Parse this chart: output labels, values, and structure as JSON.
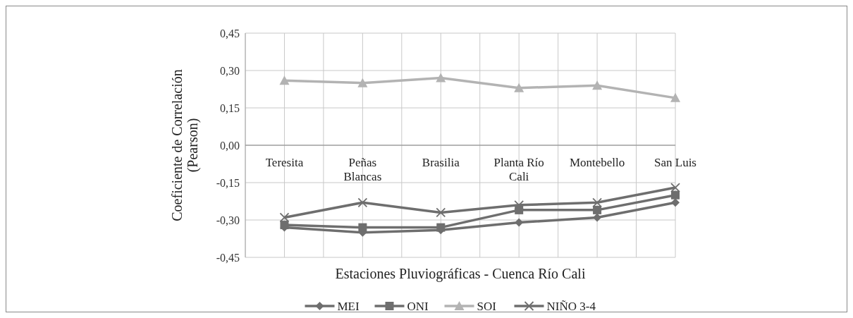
{
  "chart_data": {
    "type": "line",
    "xlabel": "Estaciones Pluviográficas - Cuenca Río Cali",
    "ylabel": "Coeficiente de Correlación\n(Pearson)",
    "categories": [
      "Teresita",
      "Peñas Blancas",
      "Brasilia",
      "Planta Río Cali",
      "Montebello",
      "San Luis"
    ],
    "series": [
      {
        "name": "MEI",
        "color": "#6e6e6e",
        "marker": "diamond",
        "values": [
          -0.33,
          -0.35,
          -0.34,
          -0.31,
          -0.29,
          -0.23
        ]
      },
      {
        "name": "ONI",
        "color": "#6e6e6e",
        "marker": "square",
        "values": [
          -0.32,
          -0.33,
          -0.33,
          -0.26,
          -0.26,
          -0.2
        ]
      },
      {
        "name": "SOI",
        "color": "#b3b3b3",
        "marker": "triangle",
        "values": [
          0.26,
          0.25,
          0.27,
          0.23,
          0.24,
          0.19
        ]
      },
      {
        "name": "NIÑO 3-4",
        "color": "#6e6e6e",
        "marker": "cross",
        "values": [
          -0.29,
          -0.23,
          -0.27,
          -0.24,
          -0.23,
          -0.17
        ]
      }
    ],
    "ylim": [
      -0.45,
      0.45
    ],
    "yticks": [
      {
        "value": 0.45,
        "label": "0,45"
      },
      {
        "value": 0.3,
        "label": "0,30"
      },
      {
        "value": 0.15,
        "label": "0,15"
      },
      {
        "value": 0,
        "label": "0,00"
      },
      {
        "value": -0.15,
        "label": "-0,15"
      },
      {
        "value": -0.3,
        "label": "-0,30"
      },
      {
        "value": -0.45,
        "label": "-0,45"
      }
    ],
    "grid": true,
    "legend": "bottom"
  }
}
